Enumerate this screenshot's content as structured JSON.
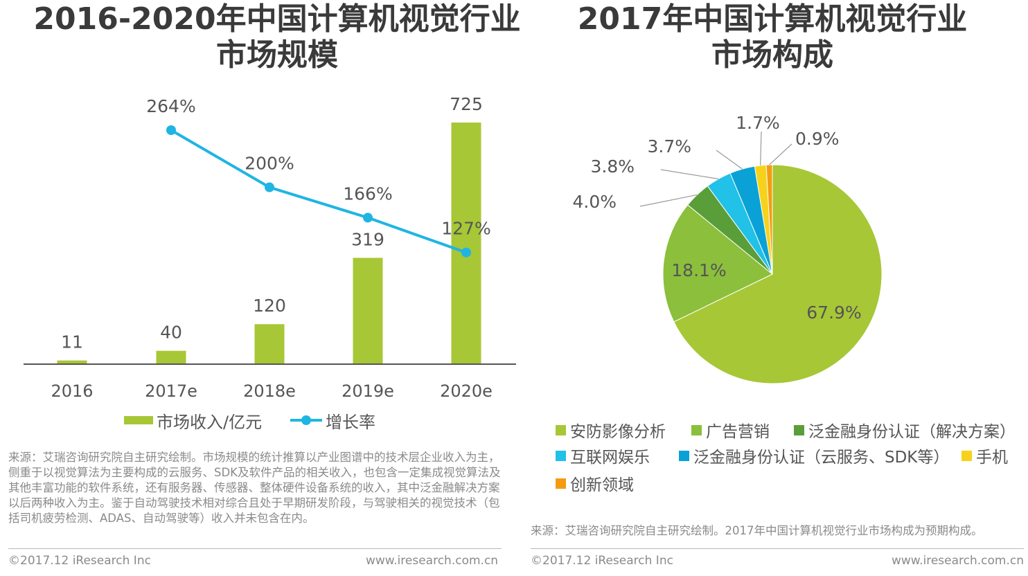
{
  "left_chart": {
    "title_line1": "2016-2020年中国计算机视觉行业",
    "title_line2": "市场规模",
    "source": "来源：艾瑞咨询研究院自主研究绘制。市场规模的统计推算以产业图谱中的技术层企业收入为主，侧重于以视觉算法为主要构成的云服务、SDK及软件产品的相关收入，也包含一定集成视觉算法及其他丰富功能的软件系统，还有服务器、传感器、整体硬件设备系统的收入，其中泛金融解决方案以后两种收入为主。鉴于自动驾驶技术相对综合且处于早期研发阶段，与驾驶相关的视觉技术（包括司机疲劳检测、ADAS、自动驾驶等）收入并未包含在内。",
    "copyright": "©2017.12 iResearch Inc",
    "url": "www.iresearch.com.cn"
  },
  "right_chart": {
    "title_line1": "2017年中国计算机视觉行业",
    "title_line2": "市场构成",
    "source": "来源：艾瑞咨询研究院自主研究绘制。2017年中国计算机视觉行业市场构成为预期构成。",
    "copyright": "©2017.12 iResearch Inc",
    "url": "www.iresearch.com.cn"
  },
  "colors": {
    "bar": "#a7c736",
    "line": "#1fb5e3",
    "slice_security": "#a7c736",
    "slice_ads": "#8bbf3c",
    "slice_fin_solution": "#5a9e3a",
    "slice_entertainment": "#21c1e8",
    "slice_fin_cloud": "#0aa2d6",
    "slice_phone": "#f7d21b",
    "slice_innovation": "#f39c12"
  },
  "chart_data": [
    {
      "type": "bar",
      "title": "2016-2020年中国计算机视觉行业市场规模",
      "categories": [
        "2016",
        "2017e",
        "2018e",
        "2019e",
        "2020e"
      ],
      "series": [
        {
          "name": "市场收入/亿元",
          "kind": "bar",
          "values": [
            11,
            40,
            120,
            319,
            725
          ],
          "labels": [
            "11",
            "40",
            "120",
            "319",
            "725"
          ]
        },
        {
          "name": "增长率",
          "kind": "line",
          "values": [
            null,
            264,
            200,
            166,
            127
          ],
          "labels": [
            "",
            "264%",
            "200%",
            "166%",
            "127%"
          ]
        }
      ],
      "xlabel": "",
      "ylabel": "",
      "ylim": [
        0,
        725
      ],
      "legend": "bottom"
    },
    {
      "type": "pie",
      "title": "2017年中国计算机视觉行业市场构成",
      "slices": [
        {
          "name": "安防影像分析",
          "value": 67.9,
          "label": "67.9%",
          "color_key": "slice_security"
        },
        {
          "name": "广告营销",
          "value": 18.1,
          "label": "18.1%",
          "color_key": "slice_ads"
        },
        {
          "name": "泛金融身份认证（解决方案）",
          "value": 4.0,
          "label": "4.0%",
          "color_key": "slice_fin_solution"
        },
        {
          "name": "互联网娱乐",
          "value": 3.8,
          "label": "3.8%",
          "color_key": "slice_entertainment"
        },
        {
          "name": "泛金融身份认证（云服务、SDK等）",
          "value": 3.7,
          "label": "3.7%",
          "color_key": "slice_fin_cloud"
        },
        {
          "name": "手机",
          "value": 1.7,
          "label": "1.7%",
          "color_key": "slice_phone"
        },
        {
          "name": "创新领域",
          "value": 0.9,
          "label": "0.9%",
          "color_key": "slice_innovation"
        }
      ],
      "legend": "bottom"
    }
  ]
}
